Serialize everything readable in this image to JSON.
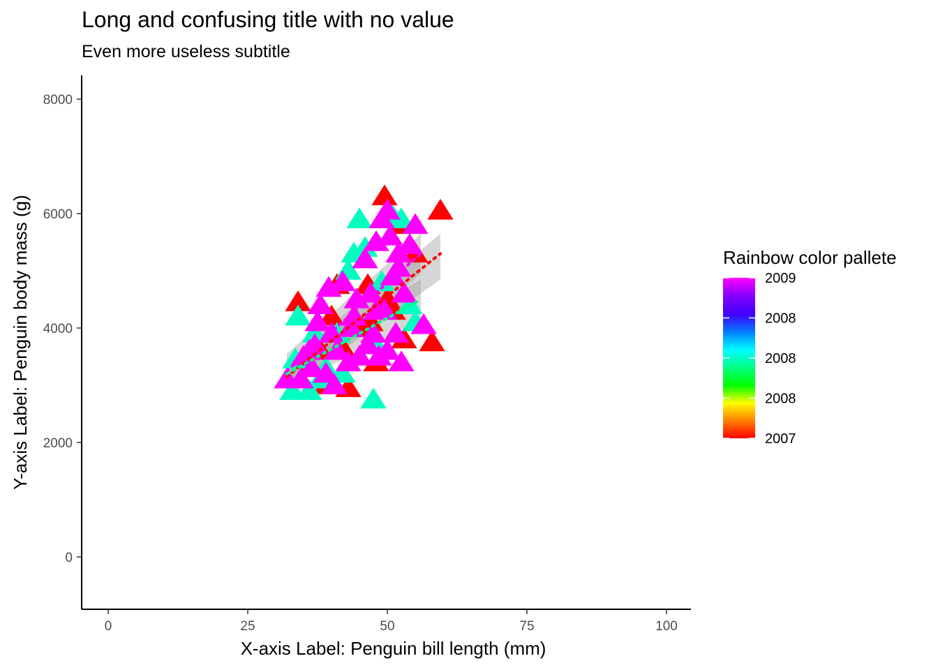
{
  "chart_data": {
    "type": "scatter",
    "title": "Long and confusing title with no value",
    "subtitle": "Even more useless subtitle",
    "xlabel": "X-axis Label: Penguin bill length (mm)",
    "ylabel": "Y-axis Label: Penguin body mass (g)",
    "xlim": [
      -5,
      105
    ],
    "ylim": [
      -900,
      8400
    ],
    "x_ticks": [
      0,
      25,
      50,
      75,
      100
    ],
    "y_ticks": [
      0,
      2000,
      4000,
      6000,
      8000
    ],
    "grid": false,
    "marker": "triangle",
    "legend": {
      "title": "Rainbow color pallete",
      "position": "right",
      "type": "colorbar",
      "labels": [
        "2009",
        "2008",
        "2008",
        "2008",
        "2007"
      ],
      "range": [
        2007,
        2009
      ]
    },
    "color_scale": [
      "#ff0000",
      "#ff8000",
      "#ffff00",
      "#00ff00",
      "#00ff80",
      "#00ffff",
      "#0080ff",
      "#4000ff",
      "#8000ff",
      "#ff00ff"
    ],
    "points": [
      {
        "x": 34.0,
        "y": 4450,
        "year": 2007
      },
      {
        "x": 41.0,
        "y": 4750,
        "year": 2007
      },
      {
        "x": 42.0,
        "y": 3650,
        "year": 2007
      },
      {
        "x": 43.0,
        "y": 2950,
        "year": 2007
      },
      {
        "x": 45.5,
        "y": 4000,
        "year": 2007
      },
      {
        "x": 47.0,
        "y": 4100,
        "year": 2007
      },
      {
        "x": 48.0,
        "y": 3400,
        "year": 2007
      },
      {
        "x": 49.5,
        "y": 6300,
        "year": 2007
      },
      {
        "x": 50.0,
        "y": 4500,
        "year": 2007
      },
      {
        "x": 52.0,
        "y": 5800,
        "year": 2007
      },
      {
        "x": 53.0,
        "y": 3800,
        "year": 2007
      },
      {
        "x": 55.0,
        "y": 5300,
        "year": 2007
      },
      {
        "x": 58.0,
        "y": 3750,
        "year": 2007
      },
      {
        "x": 59.5,
        "y": 6050,
        "year": 2007
      },
      {
        "x": 36.0,
        "y": 3300,
        "year": 2007
      },
      {
        "x": 38.0,
        "y": 3600,
        "year": 2007
      },
      {
        "x": 40.0,
        "y": 4200,
        "year": 2007
      },
      {
        "x": 46.5,
        "y": 4750,
        "year": 2007
      },
      {
        "x": 51.0,
        "y": 4300,
        "year": 2007
      },
      {
        "x": 39.0,
        "y": 3000,
        "year": 2007
      },
      {
        "x": 33.0,
        "y": 2900,
        "year": 2008
      },
      {
        "x": 34.0,
        "y": 4200,
        "year": 2008
      },
      {
        "x": 33.5,
        "y": 3450,
        "year": 2008
      },
      {
        "x": 36.0,
        "y": 2900,
        "year": 2008
      },
      {
        "x": 37.0,
        "y": 3900,
        "year": 2008
      },
      {
        "x": 42.0,
        "y": 3200,
        "year": 2008
      },
      {
        "x": 43.0,
        "y": 5000,
        "year": 2008
      },
      {
        "x": 44.0,
        "y": 5300,
        "year": 2008
      },
      {
        "x": 45.0,
        "y": 5900,
        "year": 2008
      },
      {
        "x": 47.5,
        "y": 2750,
        "year": 2008
      },
      {
        "x": 48.0,
        "y": 3700,
        "year": 2008
      },
      {
        "x": 51.0,
        "y": 5950,
        "year": 2008
      },
      {
        "x": 52.5,
        "y": 5900,
        "year": 2008
      },
      {
        "x": 54.0,
        "y": 4400,
        "year": 2008
      },
      {
        "x": 55.0,
        "y": 4100,
        "year": 2008
      },
      {
        "x": 49.0,
        "y": 4800,
        "year": 2008
      },
      {
        "x": 46.0,
        "y": 5400,
        "year": 2008
      },
      {
        "x": 39.0,
        "y": 3300,
        "year": 2008
      },
      {
        "x": 41.0,
        "y": 3900,
        "year": 2008
      },
      {
        "x": 38.0,
        "y": 3100,
        "year": 2008
      },
      {
        "x": 32.0,
        "y": 3100,
        "year": 2009
      },
      {
        "x": 35.0,
        "y": 3500,
        "year": 2009
      },
      {
        "x": 36.5,
        "y": 3300,
        "year": 2009
      },
      {
        "x": 37.0,
        "y": 3700,
        "year": 2009
      },
      {
        "x": 37.5,
        "y": 4100,
        "year": 2009
      },
      {
        "x": 38.0,
        "y": 4400,
        "year": 2009
      },
      {
        "x": 39.0,
        "y": 3200,
        "year": 2009
      },
      {
        "x": 40.0,
        "y": 3900,
        "year": 2009
      },
      {
        "x": 41.0,
        "y": 3600,
        "year": 2009
      },
      {
        "x": 42.0,
        "y": 4800,
        "year": 2009
      },
      {
        "x": 43.0,
        "y": 3400,
        "year": 2009
      },
      {
        "x": 44.0,
        "y": 4200,
        "year": 2009
      },
      {
        "x": 45.0,
        "y": 3500,
        "year": 2009
      },
      {
        "x": 46.0,
        "y": 5200,
        "year": 2009
      },
      {
        "x": 46.5,
        "y": 3700,
        "year": 2009
      },
      {
        "x": 47.0,
        "y": 4600,
        "year": 2009
      },
      {
        "x": 48.0,
        "y": 5500,
        "year": 2009
      },
      {
        "x": 48.5,
        "y": 3500,
        "year": 2009
      },
      {
        "x": 49.0,
        "y": 5900,
        "year": 2009
      },
      {
        "x": 49.5,
        "y": 4300,
        "year": 2009
      },
      {
        "x": 50.0,
        "y": 6050,
        "year": 2009
      },
      {
        "x": 50.5,
        "y": 5600,
        "year": 2009
      },
      {
        "x": 51.0,
        "y": 4900,
        "year": 2009
      },
      {
        "x": 51.5,
        "y": 3900,
        "year": 2009
      },
      {
        "x": 52.0,
        "y": 5300,
        "year": 2009
      },
      {
        "x": 52.5,
        "y": 3400,
        "year": 2009
      },
      {
        "x": 53.0,
        "y": 4600,
        "year": 2009
      },
      {
        "x": 55.0,
        "y": 5800,
        "year": 2009
      },
      {
        "x": 56.5,
        "y": 4050,
        "year": 2009
      },
      {
        "x": 44.5,
        "y": 4500,
        "year": 2009
      },
      {
        "x": 47.5,
        "y": 3900,
        "year": 2009
      },
      {
        "x": 50.0,
        "y": 3600,
        "year": 2009
      },
      {
        "x": 40.5,
        "y": 3000,
        "year": 2009
      },
      {
        "x": 43.5,
        "y": 4000,
        "year": 2009
      },
      {
        "x": 48.0,
        "y": 4300,
        "year": 2009
      },
      {
        "x": 52.0,
        "y": 5050,
        "year": 2009
      },
      {
        "x": 54.0,
        "y": 5450,
        "year": 2009
      },
      {
        "x": 39.5,
        "y": 4700,
        "year": 2009
      },
      {
        "x": 36.0,
        "y": 3600,
        "year": 2009
      },
      {
        "x": 34.5,
        "y": 3100,
        "year": 2009
      }
    ],
    "fit_lines": [
      {
        "year": 2007,
        "color": "#ff0000",
        "x": [
          32,
          59.5
        ],
        "y": [
          3150,
          5300
        ],
        "ci_low": [
          2900,
          4850
        ],
        "ci_high": [
          3400,
          5650
        ]
      },
      {
        "year": 2008,
        "color": "#00ff80",
        "x": [
          32,
          56
        ],
        "y": [
          3200,
          4500
        ],
        "ci_low": [
          2950,
          4150
        ],
        "ci_high": [
          3450,
          4850
        ]
      },
      {
        "year": 2009,
        "color": "#ff00ff",
        "x": [
          32,
          56
        ],
        "y": [
          3250,
          5300
        ],
        "ci_low": [
          2950,
          4950
        ],
        "ci_high": [
          3550,
          5650
        ]
      }
    ]
  }
}
